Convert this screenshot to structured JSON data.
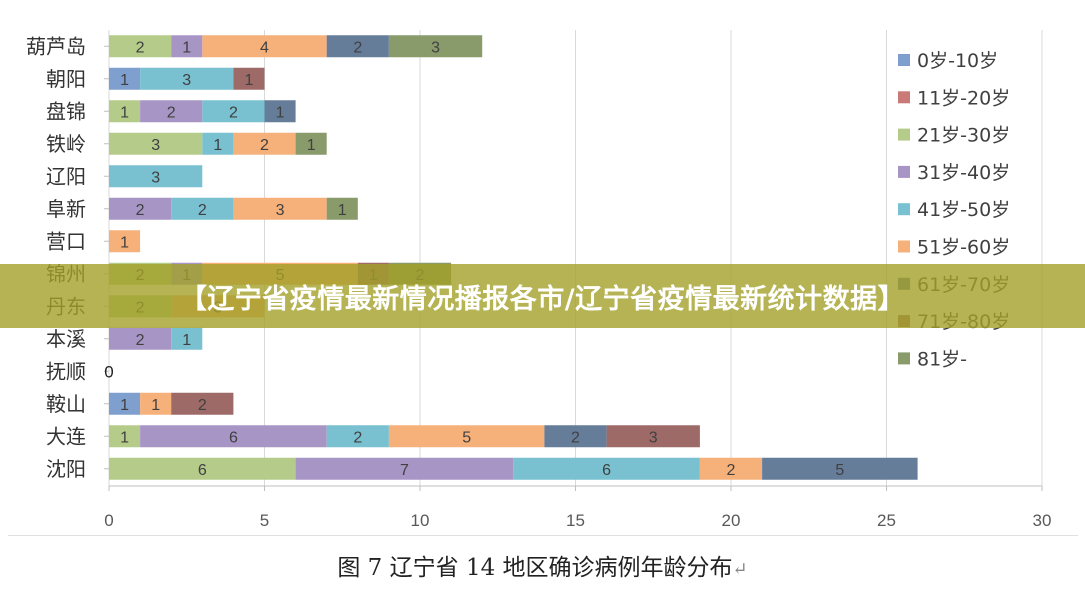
{
  "banner": {
    "text": "【辽宁省疫情最新情况播报各市/辽宁省疫情最新统计数据】"
  },
  "caption": {
    "text": "图  7    辽宁省 14 地区确诊病例年龄分布",
    "return_mark": "↵"
  },
  "chart_data": {
    "type": "bar",
    "orientation": "horizontal",
    "stacked": true,
    "categories": [
      "葫芦岛",
      "朝阳",
      "盘锦",
      "铁岭",
      "辽阳",
      "阜新",
      "营口",
      "锦州",
      "丹东",
      "本溪",
      "抚顺",
      "鞍山",
      "大连",
      "沈阳"
    ],
    "series": [
      {
        "name": "0岁-10岁",
        "color": "#7f9fcf",
        "values": [
          0,
          1,
          0,
          0,
          0,
          0,
          0,
          0,
          0,
          0,
          0,
          1,
          0,
          0
        ]
      },
      {
        "name": "11岁-20岁",
        "color": "#c97a76",
        "values": [
          0,
          0,
          0,
          0,
          0,
          0,
          0,
          0,
          0,
          0,
          0,
          0,
          0,
          0
        ]
      },
      {
        "name": "21岁-30岁",
        "color": "#b5cb8a",
        "values": [
          2,
          0,
          1,
          3,
          0,
          0,
          0,
          2,
          2,
          0,
          0,
          0,
          1,
          6
        ]
      },
      {
        "name": "31岁-40岁",
        "color": "#a795c5",
        "values": [
          1,
          0,
          2,
          0,
          0,
          2,
          0,
          1,
          0,
          2,
          0,
          0,
          6,
          7
        ]
      },
      {
        "name": "41岁-50岁",
        "color": "#79c0d0",
        "values": [
          0,
          3,
          2,
          1,
          3,
          2,
          0,
          0,
          0,
          1,
          0,
          0,
          2,
          6
        ]
      },
      {
        "name": "51岁-60岁",
        "color": "#f6b07a",
        "values": [
          4,
          0,
          0,
          2,
          0,
          3,
          1,
          5,
          3,
          0,
          0,
          1,
          5,
          2
        ]
      },
      {
        "name": "61岁-70岁",
        "color": "#667d9a",
        "values": [
          2,
          0,
          1,
          0,
          0,
          0,
          0,
          0,
          0,
          0,
          0,
          0,
          2,
          5
        ]
      },
      {
        "name": "71岁-80岁",
        "color": "#9d6a68",
        "values": [
          0,
          1,
          0,
          0,
          0,
          0,
          0,
          1,
          0,
          0,
          0,
          2,
          3,
          0
        ]
      },
      {
        "name": "81岁-",
        "color": "#899a6b",
        "values": [
          3,
          0,
          0,
          1,
          0,
          1,
          0,
          2,
          0,
          0,
          0,
          0,
          0,
          0
        ]
      }
    ],
    "zero_labels": [
      {
        "category": "抚顺",
        "label": "0"
      }
    ],
    "xlim": [
      0,
      30
    ],
    "xticks": [
      0,
      5,
      10,
      15,
      20,
      25,
      30
    ],
    "grid": "vertical",
    "legend": "right"
  }
}
